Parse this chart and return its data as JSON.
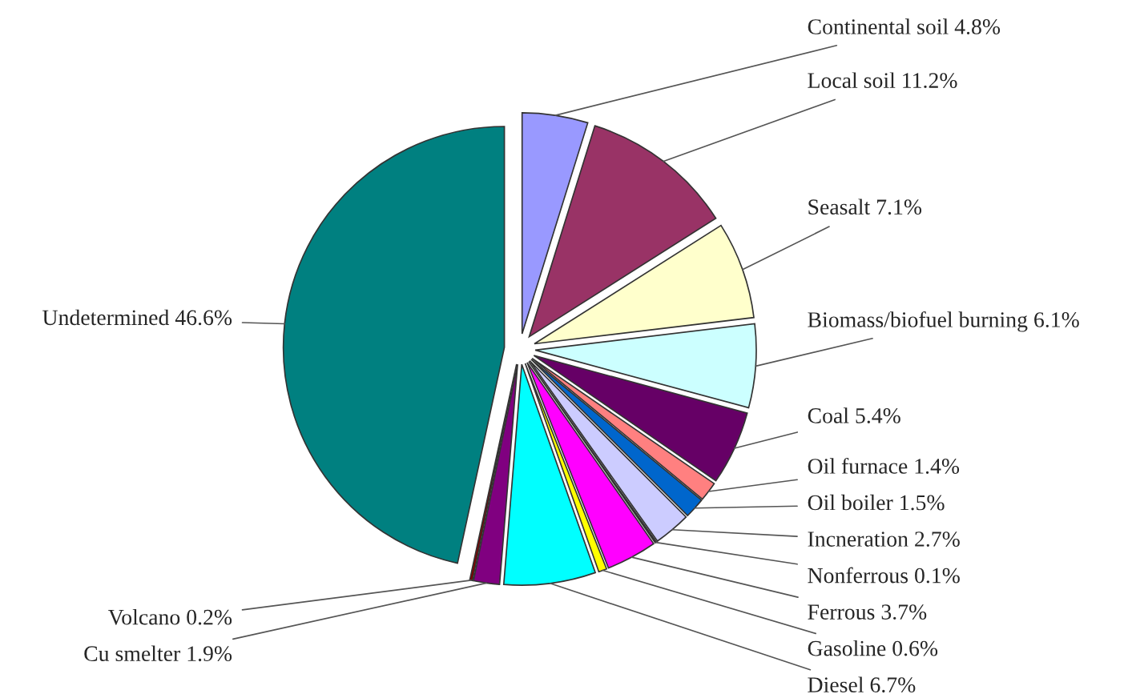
{
  "chart_data": {
    "type": "pie",
    "categories": [
      "Continental soil",
      "Local soil",
      "Seasalt",
      "Biomass/biofuel burning",
      "Coal",
      "Oil furnace",
      "Oil boiler",
      "Incneration",
      "Nonferrous",
      "Ferrous",
      "Gasoline",
      "Diesel",
      "Cu smelter",
      "Volcano",
      "Undetermined"
    ],
    "values": [
      4.8,
      11.2,
      7.1,
      6.1,
      5.4,
      1.4,
      1.5,
      2.7,
      0.1,
      3.7,
      0.6,
      6.7,
      1.9,
      0.2,
      46.6
    ],
    "value_labels": [
      "4.8%",
      "11.2%",
      "7.1%",
      "6.1%",
      "5.4%",
      "1.4%",
      "1.5%",
      "2.7%",
      "0.1%",
      "3.7%",
      "0.6%",
      "6.7%",
      "1.9%",
      "0.2%",
      "46.6%"
    ],
    "colors": [
      "#9999ff",
      "#993366",
      "#ffffcc",
      "#ccffff",
      "#660066",
      "#ff8080",
      "#0066cc",
      "#ccccff",
      "#000080",
      "#ff00ff",
      "#ffff00",
      "#00ffff",
      "#800080",
      "#800000",
      "#008080"
    ],
    "legend": false
  }
}
